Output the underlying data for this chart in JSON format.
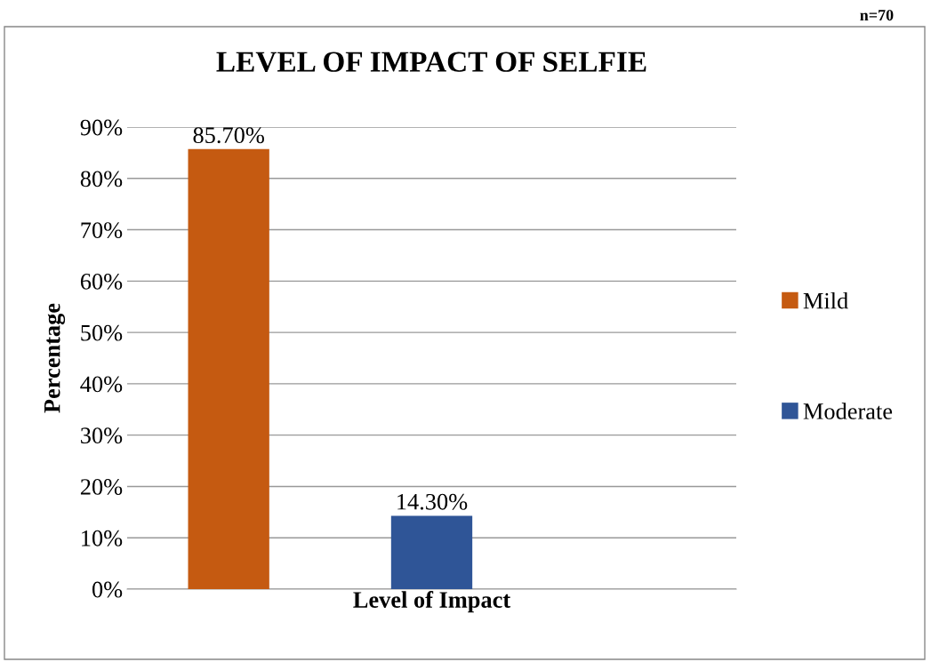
{
  "chart_data": {
    "type": "bar",
    "title": "LEVEL OF IMPACT OF SELFIE",
    "xlabel": "Level of Impact",
    "ylabel": "Percentage",
    "annotations": [
      "n=70"
    ],
    "categories": [
      null
    ],
    "series": [
      {
        "name": "Mild",
        "color": "#c55a11",
        "values": [
          85.7
        ],
        "value_labels": [
          "85.70%"
        ]
      },
      {
        "name": "Moderate",
        "color": "#2f5597",
        "values": [
          14.3
        ],
        "value_labels": [
          "14.30%"
        ]
      }
    ],
    "ylim": [
      0,
      90
    ],
    "yticks": [
      {
        "value": 0,
        "label": "0%"
      },
      {
        "value": 10,
        "label": "10%"
      },
      {
        "value": 20,
        "label": "20%"
      },
      {
        "value": 30,
        "label": "30%"
      },
      {
        "value": 40,
        "label": "40%"
      },
      {
        "value": 50,
        "label": "50%"
      },
      {
        "value": 60,
        "label": "60%"
      },
      {
        "value": 70,
        "label": "70%"
      },
      {
        "value": 80,
        "label": "80%"
      },
      {
        "value": 90,
        "label": "90%"
      }
    ],
    "grid": "y",
    "legend": "right"
  }
}
